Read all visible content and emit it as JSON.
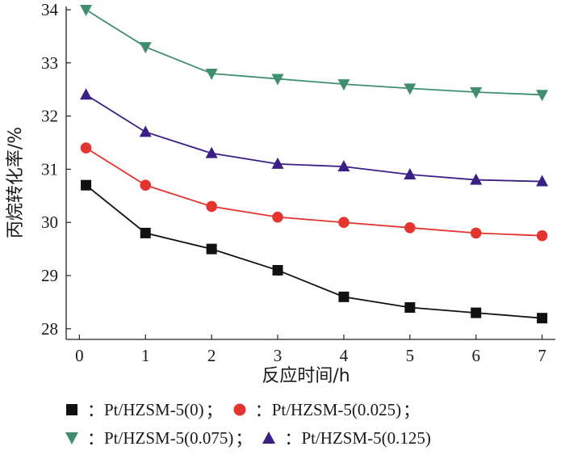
{
  "chart_data": {
    "type": "line",
    "xlabel": "反应时间/h",
    "ylabel": "丙烷转化率/%",
    "xlim": [
      -0.2,
      7.2
    ],
    "ylim": [
      27.8,
      34
    ],
    "x_ticks": [
      0,
      1,
      2,
      3,
      4,
      5,
      6,
      7
    ],
    "y_ticks": [
      28,
      29,
      30,
      31,
      32,
      33,
      34
    ],
    "grid": false,
    "legend_position": "bottom",
    "series": [
      {
        "name": "Pt/HZSM-5(0)",
        "marker": "square",
        "color": "#111111",
        "x": [
          0.1,
          1,
          2,
          3,
          4,
          5,
          6,
          7
        ],
        "values": [
          30.7,
          29.8,
          29.5,
          29.1,
          28.6,
          28.4,
          28.3,
          28.2
        ]
      },
      {
        "name": "Pt/HZSM-5(0.025)",
        "marker": "circle",
        "color": "#e3342f",
        "x": [
          0.1,
          1,
          2,
          3,
          4,
          5,
          6,
          7
        ],
        "values": [
          31.4,
          30.7,
          30.3,
          30.1,
          30.0,
          29.9,
          29.8,
          29.75
        ]
      },
      {
        "name": "Pt/HZSM-5(0.075)",
        "marker": "triangle-down",
        "color": "#3f8f6e",
        "x": [
          0.1,
          1,
          2,
          3,
          4,
          5,
          6,
          7
        ],
        "values": [
          34.0,
          33.3,
          32.8,
          32.7,
          32.6,
          32.52,
          32.45,
          32.4
        ]
      },
      {
        "name": "Pt/HZSM-5(0.125)",
        "marker": "triangle-up",
        "color": "#3b1f86",
        "x": [
          0.1,
          1,
          2,
          3,
          4,
          5,
          6,
          7
        ],
        "values": [
          32.4,
          31.7,
          31.3,
          31.1,
          31.05,
          30.9,
          30.8,
          30.77
        ]
      }
    ]
  },
  "legend": {
    "rows": [
      [
        {
          "series": 0,
          "label": "Pt/HZSM-5(0)",
          "sep": "；"
        },
        {
          "series": 1,
          "label": "Pt/HZSM-5(0.025)",
          "sep": "；"
        }
      ],
      [
        {
          "series": 2,
          "label": "Pt/HZSM-5(0.075)",
          "sep": "；"
        },
        {
          "series": 3,
          "label": "Pt/HZSM-5(0.125)",
          "sep": ""
        }
      ]
    ],
    "colon": "："
  }
}
